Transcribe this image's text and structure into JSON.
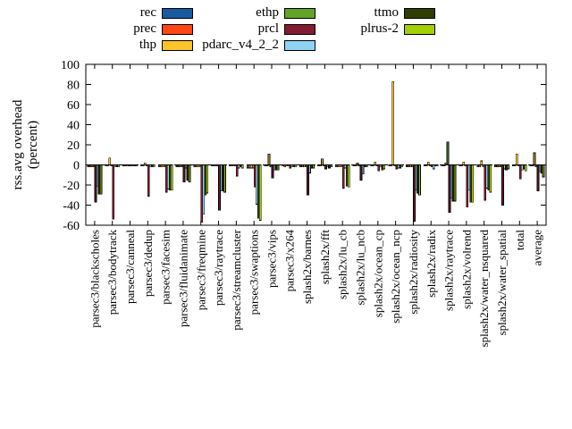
{
  "figure": {
    "background": "#ffffff"
  },
  "y_axis": {
    "title_line1": "rss.avg overhead",
    "title_line2": "(percent)"
  },
  "chart_data": {
    "type": "bar",
    "title": "",
    "xlabel": "",
    "ylabel": "rss.avg overhead (percent)",
    "ylim": [
      -60,
      100
    ],
    "yticks": [
      100,
      80,
      60,
      40,
      20,
      0,
      -20,
      -40,
      -60
    ],
    "grid": false,
    "zero_line": "dashed",
    "legend_position": "top",
    "legend_columns": 3,
    "categories": [
      "parsec3/blackscholes",
      "parsec3/bodytrack",
      "parsec3/canneal",
      "parsec3/dedup",
      "parsec3/facesim",
      "parsec3/fluidanimate",
      "parsec3/freqmine",
      "parsec3/raytrace",
      "parsec3/streamcluster",
      "parsec3/swaptions",
      "parsec3/vips",
      "parsec3/x264",
      "splash2x/barnes",
      "splash2x/fft",
      "splash2x/lu_cb",
      "splash2x/lu_ncb",
      "splash2x/ocean_cp",
      "splash2x/ocean_ncp",
      "splash2x/radiosity",
      "splash2x/radix",
      "splash2x/raytrace",
      "splash2x/volrend",
      "splash2x/water_nsquared",
      "splash2x/water_spatial",
      "total",
      "average"
    ],
    "series": [
      {
        "name": "rec",
        "color": "#1a5a9e",
        "values": [
          -2,
          -1,
          0,
          -1,
          -2,
          -2,
          -2,
          -1,
          -1,
          -3,
          -1,
          -1,
          -2,
          -1,
          -2,
          -1,
          -1,
          -1,
          -2,
          -1,
          -1,
          -1,
          -2,
          -2,
          -1,
          -1
        ]
      },
      {
        "name": "prec",
        "color": "#ff4713",
        "values": [
          -2,
          -1,
          -1,
          -1,
          -2,
          -2,
          -2,
          -1,
          -1,
          -3,
          -1,
          -2,
          -2,
          -1,
          -2,
          -1,
          -1,
          -1,
          -2,
          -1,
          -1,
          -1,
          -2,
          -2,
          -1,
          -1
        ]
      },
      {
        "name": "thp",
        "color": "#fdc32b",
        "values": [
          -2,
          7,
          -1,
          2,
          -2,
          -2,
          -2,
          -1,
          -1,
          -3,
          11,
          -1,
          -2,
          6,
          -2,
          2,
          3,
          83,
          -2,
          3,
          2,
          3,
          4,
          -2,
          11,
          12
        ]
      },
      {
        "name": "ethp",
        "color": "#64a32a",
        "values": [
          -2,
          -1,
          0,
          -1,
          -2,
          -2,
          -2,
          -1,
          -1,
          -3,
          -2,
          -1,
          -2,
          -1,
          -2,
          -1,
          -1,
          -1,
          -2,
          -1,
          23,
          -1,
          -2,
          -2,
          -1,
          -2
        ]
      },
      {
        "name": "prcl",
        "color": "#821c30",
        "values": [
          -37,
          -54,
          -1,
          -31,
          -27,
          -17,
          -57,
          -45,
          -11,
          -22,
          -13,
          -3,
          -30,
          -4,
          -23,
          -15,
          -6,
          -4,
          -56,
          -2,
          -47,
          -42,
          -35,
          -40,
          -14,
          -26
        ]
      },
      {
        "name": "pdarc_v4_2_2",
        "color": "#8fd2f4",
        "values": [
          -21,
          -2,
          -1,
          -2,
          -24,
          -3,
          -49,
          -26,
          -3,
          -39,
          -5,
          -2,
          -8,
          -2,
          -3,
          -9,
          -2,
          -3,
          -25,
          -4,
          -33,
          -25,
          -23,
          -4,
          -5,
          -6
        ]
      },
      {
        "name": "ttmo",
        "color": "#2f3d03",
        "values": [
          -29,
          -2,
          0,
          -2,
          -25,
          -15,
          -30,
          -26,
          -2,
          -53,
          -5,
          -2,
          -3,
          -3,
          -21,
          -2,
          -5,
          -3,
          -28,
          -1,
          -36,
          -37,
          -25,
          -5,
          -4,
          -8
        ]
      },
      {
        "name": "plrus-2",
        "color": "#a2cf06",
        "values": [
          -29,
          -2,
          -1,
          -2,
          -25,
          -17,
          -28,
          -27,
          -3,
          -55,
          -5,
          -2,
          -3,
          -2,
          -22,
          -2,
          -4,
          -2,
          -30,
          -1,
          -36,
          -37,
          -27,
          -4,
          -6,
          -12
        ]
      }
    ]
  }
}
